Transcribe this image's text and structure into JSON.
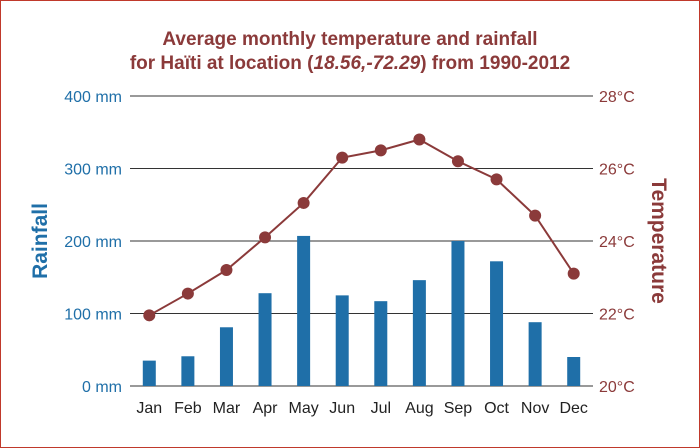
{
  "chart_data": {
    "type": "bar+line",
    "title_line1": "Average monthly temperature and rainfall",
    "title_line2_prefix": "for Haïti at location (",
    "title_line2_coords": "18.56,-72.29",
    "title_line2_suffix": ") from 1990-2012",
    "categories": [
      "Jan",
      "Feb",
      "Mar",
      "Apr",
      "May",
      "Jun",
      "Jul",
      "Aug",
      "Sep",
      "Oct",
      "Nov",
      "Dec"
    ],
    "rainfall": {
      "name": "Rainfall",
      "unit": "mm",
      "values": [
        35,
        41,
        81,
        128,
        207,
        125,
        117,
        146,
        200,
        172,
        88,
        40
      ],
      "ylim": [
        0,
        400
      ],
      "ticks": [
        0,
        100,
        200,
        300,
        400
      ],
      "tick_labels": [
        "0 mm",
        "100 mm",
        "200 mm",
        "300 mm",
        "400 mm"
      ],
      "color": "#1f6fa8"
    },
    "temperature": {
      "name": "Temperature",
      "unit": "°C",
      "values": [
        21.95,
        22.55,
        23.2,
        24.1,
        25.05,
        26.3,
        26.5,
        26.8,
        26.2,
        25.7,
        24.7,
        23.1
      ],
      "ylim": [
        20,
        28
      ],
      "ticks": [
        20,
        22,
        24,
        26,
        28
      ],
      "tick_labels": [
        "20°C",
        "22°C",
        "24°C",
        "26°C",
        "28°C"
      ],
      "color": "#8b3a3a"
    },
    "grid": true,
    "accent_border": "#c0392b"
  }
}
